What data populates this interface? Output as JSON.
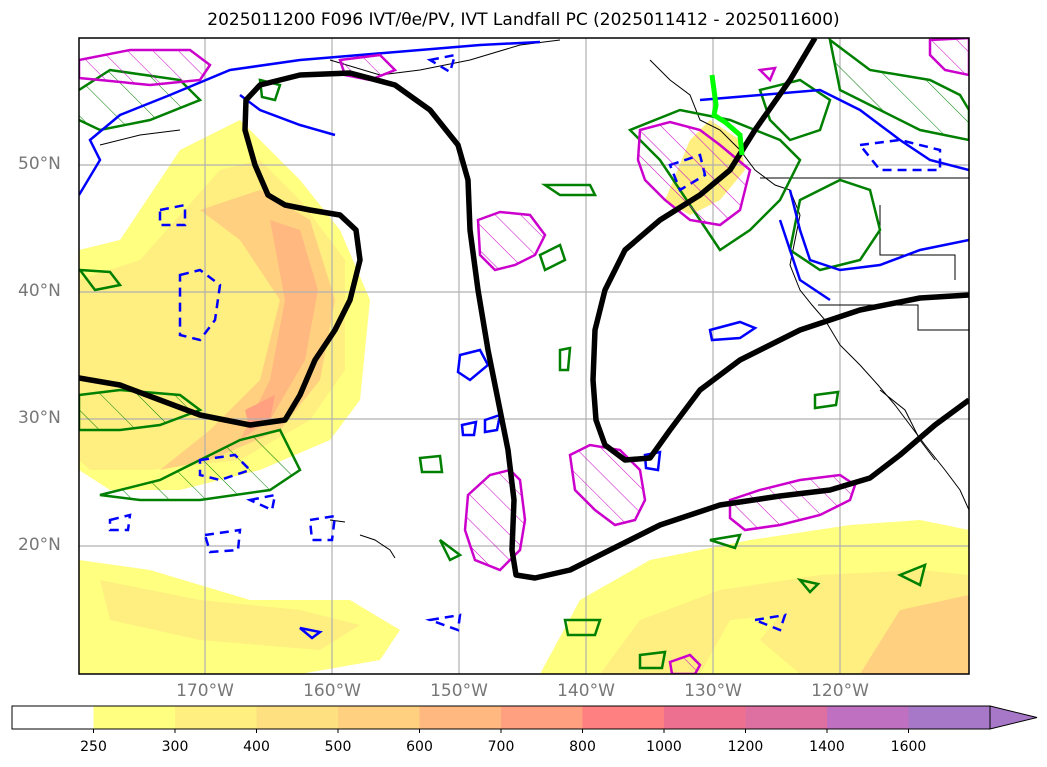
{
  "title": "2025011200 F096 IVT/θe/PV, IVT Landfall PC (2025011412 - 2025011600)",
  "lat_labels": [
    "50°N",
    "40°N",
    "30°N",
    "20°N"
  ],
  "lon_labels": [
    "170°W",
    "160°W",
    "150°W",
    "140°W",
    "130°W",
    "120°W"
  ],
  "colorbar": {
    "ticks": [
      "250",
      "300",
      "400",
      "500",
      "600",
      "700",
      "800",
      "1000",
      "1200",
      "1400",
      "1600"
    ],
    "colors": [
      "#ffffff",
      "#ffff80",
      "#ffee80",
      "#ffe080",
      "#ffd080",
      "#ffb880",
      "#ffa080",
      "#ff8080",
      "#ee7090",
      "#dd70a0",
      "#c070c0",
      "#a878c8"
    ],
    "extend": "max"
  },
  "legend_colors": {
    "ivt_fill": "#ffee80",
    "theta_e_contour": "#000000",
    "pv_contour": "#cc00cc",
    "green_contour": "#008000",
    "blue_contour": "#0000ff",
    "landfall_point": "#00ff00"
  }
}
